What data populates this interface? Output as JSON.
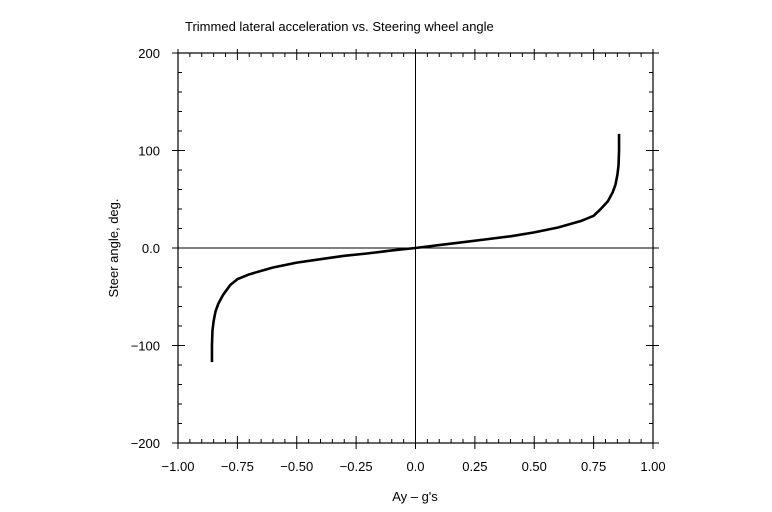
{
  "chart_data": {
    "type": "line",
    "title": "Trimmed lateral acceleration vs. Steering wheel angle",
    "xlabel": "Ay – g's",
    "ylabel": "Steer angle, deg.",
    "xlim": [
      -1.0,
      1.0
    ],
    "ylim": [
      -200,
      200
    ],
    "x_ticks": [
      -1.0,
      -0.75,
      -0.5,
      -0.25,
      0.0,
      0.25,
      0.5,
      0.75,
      1.0
    ],
    "x_tick_labels": [
      "−1.00",
      "−0.75",
      "−0.50",
      "−0.25",
      "0.0",
      "0.25",
      "0.50",
      "0.75",
      "1.00"
    ],
    "y_ticks": [
      -200,
      -100,
      0,
      100,
      200
    ],
    "y_tick_labels": [
      "−200",
      "−100",
      "0.0",
      "100",
      "200"
    ],
    "x_minor_step": 0.05,
    "y_minor_step": 20,
    "grid": false,
    "zero_lines": true,
    "series": [
      {
        "name": "Steer angle",
        "color": "#000000",
        "x": [
          -0.857,
          -0.857,
          -0.855,
          -0.85,
          -0.842,
          -0.83,
          -0.81,
          -0.78,
          -0.75,
          -0.7,
          -0.6,
          -0.5,
          -0.4,
          -0.3,
          -0.2,
          -0.1,
          0.0,
          0.1,
          0.2,
          0.3,
          0.4,
          0.5,
          0.6,
          0.7,
          0.75,
          0.78,
          0.81,
          0.83,
          0.842,
          0.85,
          0.855,
          0.857,
          0.857
        ],
        "y": [
          -117,
          -100,
          -85,
          -75,
          -65,
          -57,
          -48,
          -38,
          -32,
          -27,
          -20,
          -15,
          -11.5,
          -8,
          -5.5,
          -2.5,
          0,
          3,
          6,
          9,
          12,
          16,
          21,
          28,
          33,
          40,
          48,
          57,
          65,
          75,
          85,
          100,
          117
        ]
      }
    ]
  }
}
